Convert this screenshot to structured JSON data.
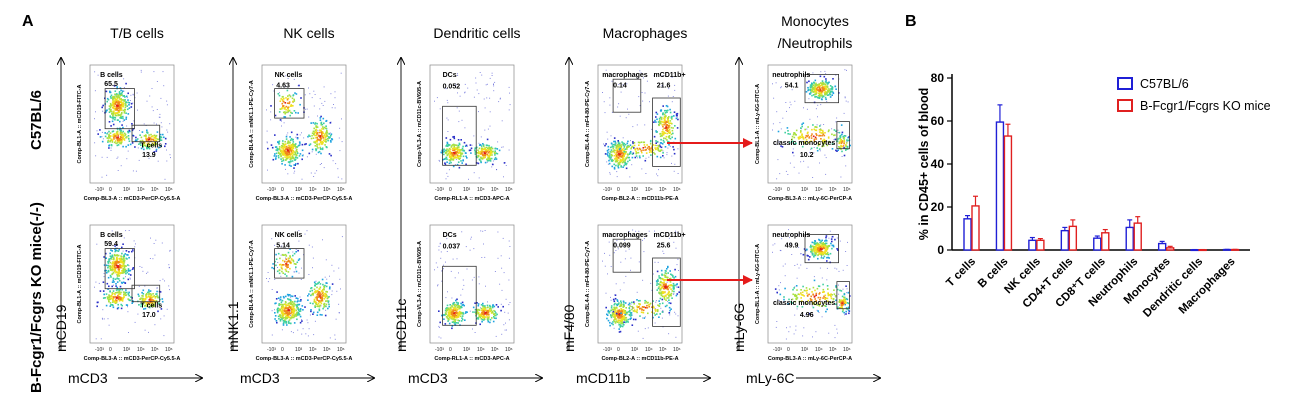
{
  "panel_a_label": "A",
  "panel_b_label": "B",
  "row_labels": [
    "C57BL/6",
    "B-Fcgr1/Fcgrs KO mice(-/-)"
  ],
  "columns": [
    {
      "title": "T/B cells",
      "title2": "",
      "y_marker": "mCD19",
      "x_marker": "mCD3",
      "x_axis_text": "Comp-BL3-A :: mCD3-PerCP-Cy5.5-A",
      "y_axis_text": "Comp-BL1-A :: mCD19-FITC-A"
    },
    {
      "title": "NK cells",
      "title2": "",
      "y_marker": "mNK1.1",
      "x_marker": "mCD3",
      "x_axis_text": "Comp-BL3-A :: mCD3-PerCP-Cy5.5-A",
      "y_axis_text": "Comp-BL4-A :: mNK1.1-PE-Cy7-A"
    },
    {
      "title": "Dendritic cells",
      "title2": "",
      "y_marker": "mCD11c",
      "x_marker": "mCD3",
      "x_axis_text": "Comp-RL1-A :: mCD3-APC-A",
      "y_axis_text": "Comp-VL3-A :: mCD11c-BV605-A"
    },
    {
      "title": "Macrophages",
      "title2": "",
      "y_marker": "mF4/80",
      "x_marker": "mCD11b",
      "x_axis_text": "Comp-BL2-A :: mCD11b-PE-A",
      "y_axis_text": "Comp-BL4-A :: mF4-80-PE-Cy7-A"
    },
    {
      "title": "Monocytes",
      "title2": "/Neutrophils",
      "y_marker": "mLy-6G",
      "x_marker": "mLy-6C",
      "x_axis_text": "Comp-BL3-A :: mLy-6C-PerCP-A",
      "y_axis_text": "Comp-BL1-A :: mLy-6G-FITC-A"
    }
  ],
  "gates": [
    [
      [
        {
          "name": "B cells",
          "value": "65.5"
        },
        {
          "name": "T cells",
          "value": "13.9"
        }
      ],
      [
        {
          "name": "NK cells",
          "value": "4.63"
        }
      ],
      [
        {
          "name": "DCs",
          "value": "0.052"
        }
      ],
      [
        {
          "name": "macrophages",
          "value": "0.14"
        },
        {
          "name": "mCD11b+",
          "value": "21.6"
        }
      ],
      [
        {
          "name": "neutrophils",
          "value": "54.1"
        },
        {
          "name": "classic monocytes",
          "value": "10.2"
        }
      ]
    ],
    [
      [
        {
          "name": "B cells",
          "value": "59.4"
        },
        {
          "name": "T cells",
          "value": "17.0"
        }
      ],
      [
        {
          "name": "NK cells",
          "value": "5.14"
        }
      ],
      [
        {
          "name": "DCs",
          "value": "0.037"
        }
      ],
      [
        {
          "name": "macrophages",
          "value": "0.099"
        },
        {
          "name": "mCD11b+",
          "value": "25.6"
        }
      ],
      [
        {
          "name": "neutrophils",
          "value": "49.9"
        },
        {
          "name": "classic monocytes",
          "value": "4.96"
        }
      ]
    ]
  ],
  "chart_data": {
    "type": "bar",
    "title": "",
    "ylabel": "% in CD45+ cells of blood",
    "xlabel": "",
    "ylim": [
      0,
      80
    ],
    "yticks": [
      0,
      20,
      40,
      60,
      80
    ],
    "categories": [
      "T cells",
      "B cells",
      "NK cells",
      "CD4+T cells",
      "CD8⁺T cells",
      "Neutrophils",
      "Monocytes",
      "Dendritic cells",
      "Macrophages"
    ],
    "series": [
      {
        "name": "C57BL/6",
        "color": "#1f1fd6",
        "values": [
          14.5,
          59.5,
          4.5,
          9,
          5.5,
          10.5,
          3,
          0.1,
          0.2
        ],
        "errors": [
          1.5,
          8,
          1.3,
          1.5,
          1,
          3.5,
          1,
          0.1,
          0.1
        ]
      },
      {
        "name": "B-Fcgr1/Fcgrs KO mice",
        "color": "#e02020",
        "values": [
          20.5,
          53,
          4.5,
          11,
          8,
          12.5,
          1,
          0.1,
          0.2
        ],
        "errors": [
          4.5,
          5.5,
          0.8,
          3,
          1.5,
          3,
          0.7,
          0.1,
          0.1
        ]
      }
    ],
    "grid": false,
    "legend": "top-right"
  },
  "colors": {
    "red_arrow": "#e51b1b",
    "density_low": "#1a2fd0",
    "density_high": "#e31a1c"
  }
}
